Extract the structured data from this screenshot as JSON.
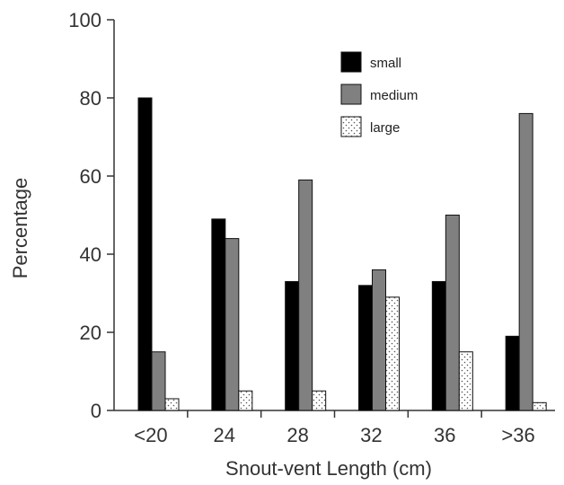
{
  "chart_data": {
    "type": "bar",
    "title": "",
    "xlabel": "Snout-vent Length (cm)",
    "ylabel": "Percentage",
    "categories": [
      "<20",
      "24",
      "28",
      "32",
      "36",
      ">36"
    ],
    "ylim": [
      0,
      100
    ],
    "yticks": [
      0,
      20,
      40,
      60,
      80,
      100
    ],
    "legend_position": "top-right",
    "grid": false,
    "series": [
      {
        "name": "small",
        "color": "#000000",
        "pattern": "solid",
        "values": [
          80,
          49,
          33,
          32,
          33,
          19
        ]
      },
      {
        "name": "medium",
        "color": "#808080",
        "pattern": "solid",
        "values": [
          15,
          44,
          59,
          36,
          50,
          76
        ]
      },
      {
        "name": "large",
        "color": "#ffffff",
        "pattern": "dotted",
        "values": [
          3,
          5,
          5,
          29,
          15,
          2
        ]
      }
    ]
  }
}
